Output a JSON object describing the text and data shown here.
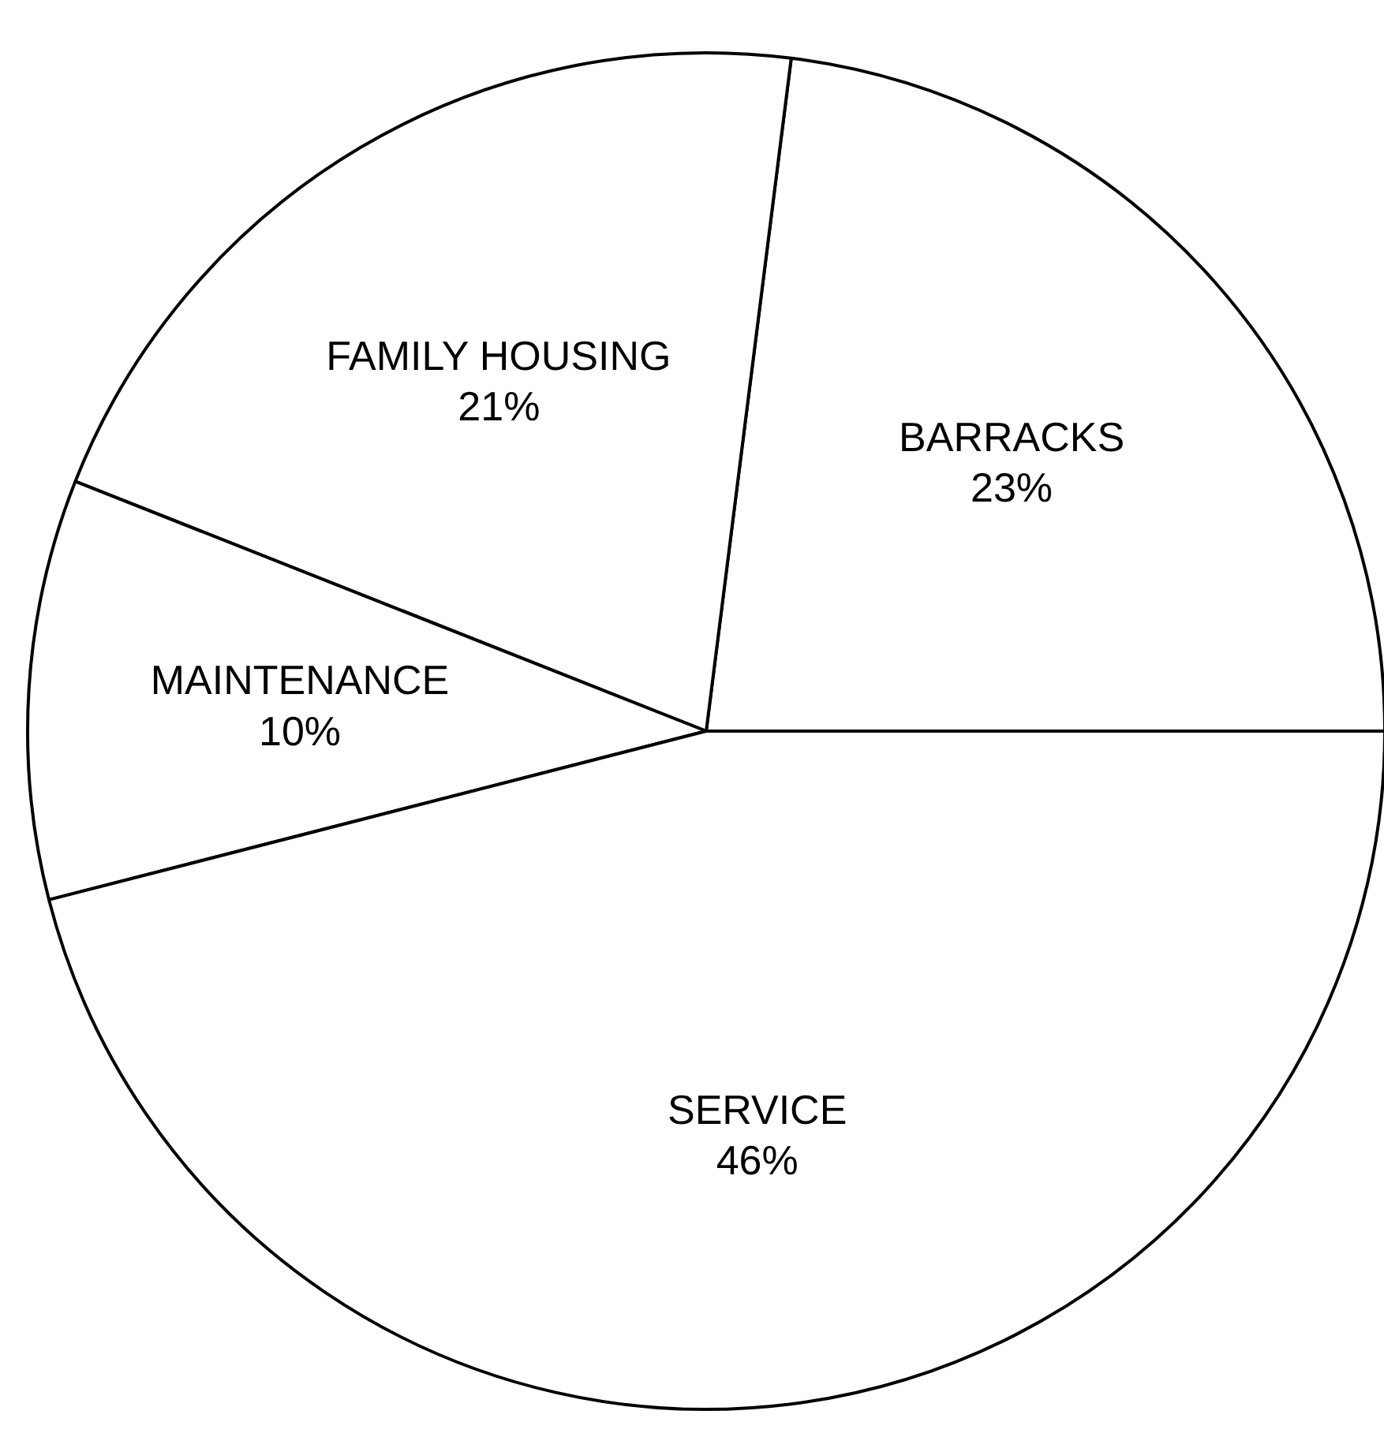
{
  "chart_data": {
    "type": "pie",
    "categories": [
      "BARRACKS",
      "FAMILY HOUSING",
      "MAINTENANCE",
      "SERVICE"
    ],
    "values": [
      23,
      21,
      10,
      46
    ],
    "colors": [
      "#ffffff",
      "#ffffff",
      "#ffffff",
      "#ffffff"
    ],
    "value_labels": [
      "23%",
      "21%",
      "10%",
      "46%"
    ]
  }
}
